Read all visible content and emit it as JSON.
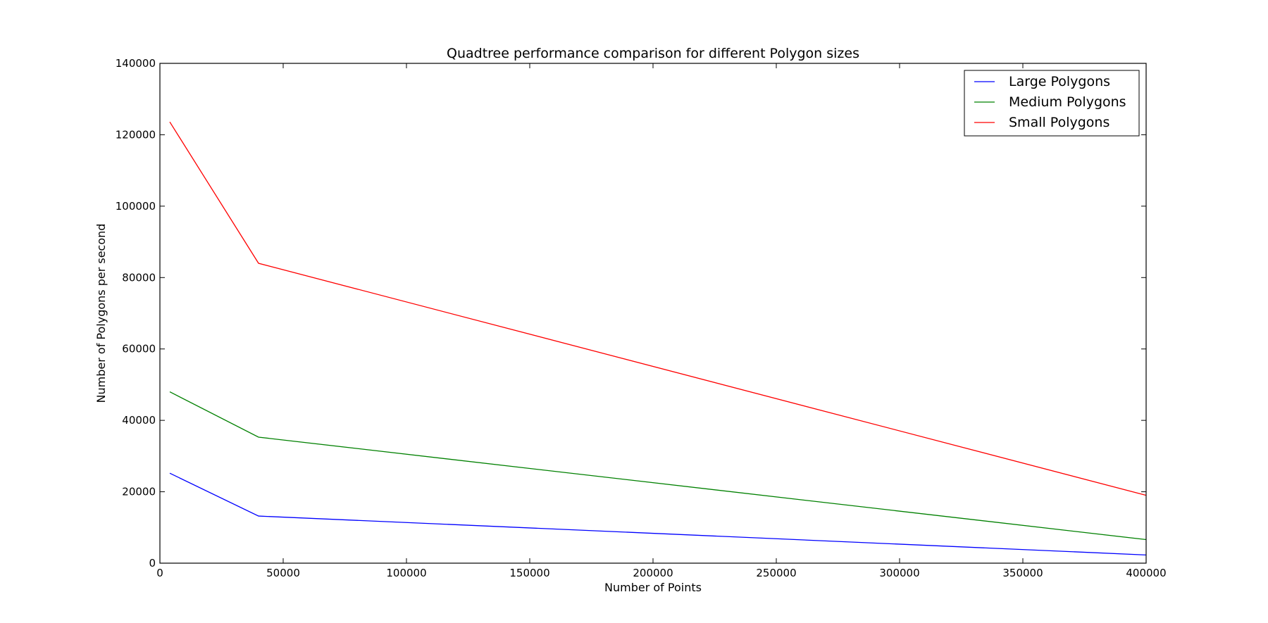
{
  "chart_data": {
    "type": "line",
    "title": "Quadtree performance comparison for different Polygon sizes",
    "xlabel": "Number of Points",
    "ylabel": "Number of Polygons per second",
    "xlim": [
      0,
      400000
    ],
    "ylim": [
      0,
      140000
    ],
    "x_ticks": [
      0,
      50000,
      100000,
      150000,
      200000,
      250000,
      300000,
      350000,
      400000
    ],
    "y_ticks": [
      0,
      20000,
      40000,
      60000,
      80000,
      100000,
      120000,
      140000
    ],
    "x_tick_labels": [
      "0",
      "50000",
      "100000",
      "150000",
      "200000",
      "250000",
      "300000",
      "350000",
      "400000"
    ],
    "y_tick_labels": [
      "0",
      "20000",
      "40000",
      "60000",
      "80000",
      "100000",
      "120000",
      "140000"
    ],
    "x": [
      4000,
      40000,
      400000
    ],
    "grid": false,
    "legend_position": "top-right",
    "series": [
      {
        "name": "Large Polygons",
        "color": "#0000ff",
        "values": [
          25200,
          13200,
          2300
        ]
      },
      {
        "name": "Medium Polygons",
        "color": "#008000",
        "values": [
          48000,
          35300,
          6600
        ]
      },
      {
        "name": "Small Polygons",
        "color": "#ff0000",
        "values": [
          123600,
          84000,
          19000
        ]
      }
    ]
  }
}
